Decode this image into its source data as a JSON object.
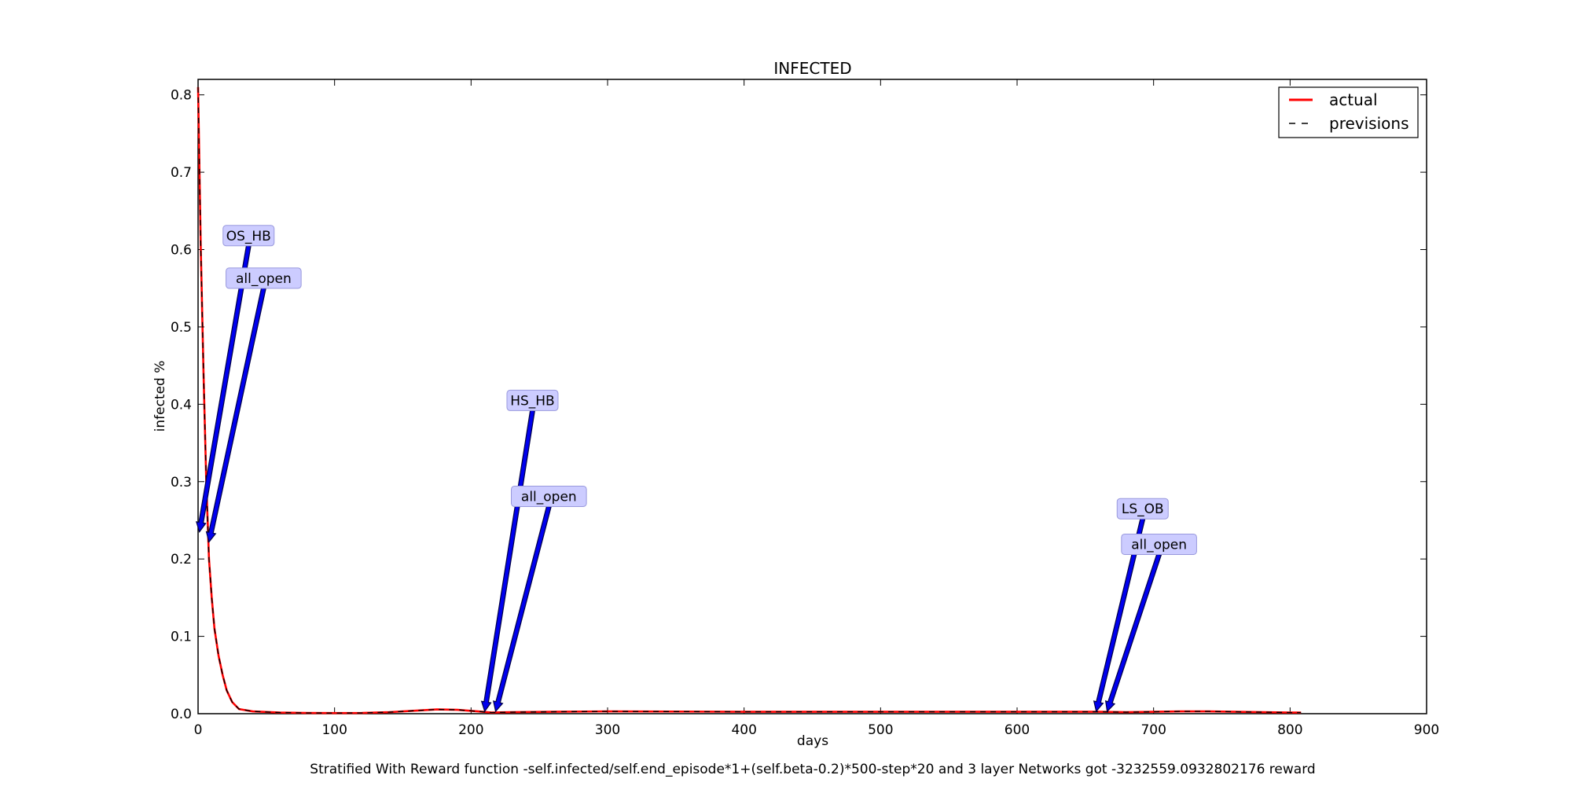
{
  "chart_data": {
    "type": "line",
    "title": "INFECTED",
    "xlabel": "days",
    "ylabel": "infected %",
    "caption": "Stratified With Reward function -self.infected/self.end_episode*1+(self.beta-0.2)*500-step*20 and 3 layer Networks got -3232559.0932802176 reward",
    "xlim": [
      0,
      900
    ],
    "ylim": [
      0,
      0.82
    ],
    "x_ticks": [
      0,
      100,
      200,
      300,
      400,
      500,
      600,
      700,
      800,
      900
    ],
    "x_tick_labels": [
      "0",
      "100",
      "200",
      "300",
      "400",
      "500",
      "600",
      "700",
      "800",
      "900"
    ],
    "y_ticks": [
      0.0,
      0.1,
      0.2,
      0.3,
      0.4,
      0.5,
      0.6,
      0.7,
      0.8
    ],
    "y_tick_labels": [
      "0.0",
      "0.1",
      "0.2",
      "0.3",
      "0.4",
      "0.5",
      "0.6",
      "0.7",
      "0.8"
    ],
    "grid": false,
    "legend": {
      "placement": "top-right",
      "entries": [
        {
          "label": "actual",
          "color": "#ff0000",
          "style": "solid"
        },
        {
          "label": "previsions",
          "color": "#000000",
          "style": "dashed"
        }
      ]
    },
    "series": [
      {
        "name": "actual",
        "color": "#ff0000",
        "style": "solid",
        "x": [
          0,
          2,
          4,
          6,
          8,
          10,
          12,
          15,
          18,
          21,
          25,
          30,
          40,
          60,
          80,
          100,
          120,
          140,
          160,
          175,
          190,
          205,
          215,
          230,
          260,
          300,
          400,
          500,
          600,
          660,
          680,
          700,
          720,
          740,
          760,
          780,
          800,
          808
        ],
        "y": [
          0.81,
          0.6,
          0.44,
          0.3,
          0.2,
          0.15,
          0.11,
          0.075,
          0.05,
          0.03,
          0.015,
          0.006,
          0.003,
          0.0015,
          0.001,
          0.0008,
          0.001,
          0.002,
          0.004,
          0.0055,
          0.005,
          0.003,
          0.0015,
          0.002,
          0.0025,
          0.003,
          0.0025,
          0.0025,
          0.0025,
          0.0025,
          0.002,
          0.0025,
          0.003,
          0.003,
          0.0025,
          0.002,
          0.0015,
          0.0015
        ]
      },
      {
        "name": "previsions",
        "color": "#000000",
        "style": "dashed",
        "x": [
          0,
          2,
          4,
          6,
          8,
          10,
          12,
          15,
          18,
          21,
          25,
          30,
          40,
          60,
          80,
          100,
          120,
          140,
          160,
          175,
          190,
          205,
          215,
          230,
          260,
          300,
          400,
          500,
          600,
          660,
          680,
          700,
          720,
          740,
          760,
          780,
          800,
          808
        ],
        "y": [
          0.81,
          0.6,
          0.44,
          0.3,
          0.2,
          0.15,
          0.11,
          0.075,
          0.05,
          0.03,
          0.015,
          0.006,
          0.003,
          0.0015,
          0.001,
          0.0008,
          0.001,
          0.002,
          0.004,
          0.0055,
          0.005,
          0.003,
          0.0015,
          0.002,
          0.0025,
          0.003,
          0.0025,
          0.0025,
          0.0025,
          0.0025,
          0.002,
          0.0025,
          0.003,
          0.003,
          0.0025,
          0.002,
          0.0015,
          0.0015
        ]
      }
    ],
    "annotations": [
      {
        "text": "OS_HB",
        "point": [
          1,
          0.235
        ],
        "label_at": [
          37,
          0.618
        ]
      },
      {
        "text": "all_open",
        "point": [
          8,
          0.222
        ],
        "label_at": [
          48,
          0.563
        ]
      },
      {
        "text": "HS_HB",
        "point": [
          210,
          0.003
        ],
        "label_at": [
          245,
          0.405
        ]
      },
      {
        "text": "all_open",
        "point": [
          218,
          0.003
        ],
        "label_at": [
          257,
          0.281
        ]
      },
      {
        "text": "LS_OB",
        "point": [
          658,
          0.003
        ],
        "label_at": [
          692,
          0.265
        ]
      },
      {
        "text": "all_open",
        "point": [
          666,
          0.003
        ],
        "label_at": [
          704,
          0.219
        ]
      }
    ],
    "annotation_style": {
      "box_fill": "#ccccff",
      "box_stroke": "#9999dd",
      "arrow_fill": "#0000ee",
      "arrow_stroke": "#000044"
    }
  }
}
